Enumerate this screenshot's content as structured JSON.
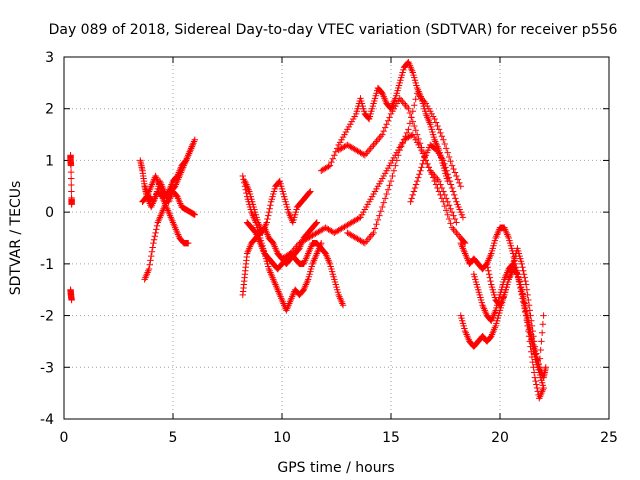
{
  "chart_data": {
    "type": "scatter",
    "title": "Day 089 of 2018, Sidereal Day-to-day VTEC variation (SDTVAR) for receiver p556",
    "xlabel": "GPS time / hours",
    "ylabel": "SDTVAR / TECUs",
    "xlim": [
      0,
      25
    ],
    "ylim": [
      -4,
      3
    ],
    "xticks": [
      "0",
      "5",
      "10",
      "15",
      "20",
      "25"
    ],
    "yticks": [
      "-4",
      "-3",
      "-2",
      "-1",
      "0",
      "1",
      "2",
      "3"
    ],
    "grid": true,
    "marker": "+",
    "color": "#ff0000",
    "series": [
      {
        "name": "s1",
        "x": [
          0.3,
          0.3,
          0.32,
          0.35,
          0.35
        ],
        "y": [
          1.1,
          1.0,
          0.9,
          0.15,
          0.25
        ]
      },
      {
        "name": "s2",
        "x": [
          0.3,
          0.32,
          0.35
        ],
        "y": [
          -1.5,
          -1.6,
          -1.7
        ]
      },
      {
        "name": "s3",
        "x": [
          3.5,
          3.6,
          3.7,
          3.8,
          4.0,
          4.2,
          4.4,
          4.6,
          4.8,
          5.0,
          5.2,
          5.4,
          5.6,
          5.8,
          6.0
        ],
        "y": [
          1.0,
          0.8,
          0.5,
          0.3,
          0.1,
          0.3,
          0.6,
          0.4,
          0.2,
          0.4,
          0.3,
          0.1,
          0.05,
          0.0,
          -0.05
        ]
      },
      {
        "name": "s4",
        "x": [
          3.6,
          3.8,
          4.0,
          4.2,
          4.4,
          4.6,
          4.8,
          5.0,
          5.2,
          5.4,
          5.6,
          5.8,
          6.0
        ],
        "y": [
          0.2,
          0.3,
          0.5,
          0.7,
          0.5,
          0.3,
          0.4,
          0.6,
          0.7,
          0.9,
          1.0,
          1.2,
          1.4
        ]
      },
      {
        "name": "s5",
        "x": [
          3.7,
          3.9,
          4.1,
          4.3,
          4.5,
          4.7,
          4.9,
          5.1,
          5.3,
          5.5,
          5.7,
          5.9
        ],
        "y": [
          -1.3,
          -1.1,
          -0.6,
          -0.2,
          0.0,
          0.2,
          0.4,
          0.5,
          0.7,
          0.9,
          1.1,
          1.3
        ]
      },
      {
        "name": "s6",
        "x": [
          3.7,
          3.9,
          4.1,
          4.3,
          4.5,
          4.7,
          4.9,
          5.1,
          5.3,
          5.5,
          5.7
        ],
        "y": [
          0.5,
          0.3,
          0.2,
          0.4,
          0.3,
          0.1,
          -0.1,
          -0.3,
          -0.5,
          -0.6,
          -0.6
        ]
      },
      {
        "name": "s7",
        "x": [
          8.2,
          8.3,
          8.4,
          8.6,
          8.8,
          9.0,
          9.2,
          9.4,
          9.6,
          9.8,
          10.0,
          10.2,
          10.4,
          10.6,
          10.8,
          11.0,
          11.2,
          11.4,
          11.6
        ],
        "y": [
          -1.6,
          -1.2,
          -0.8,
          -0.6,
          -0.5,
          -0.4,
          -0.3,
          -0.5,
          -0.6,
          -0.8,
          -0.9,
          -1.0,
          -0.9,
          -0.8,
          -0.7,
          -0.5,
          -0.4,
          -0.3,
          -0.2
        ]
      },
      {
        "name": "s8",
        "x": [
          8.2,
          8.4,
          8.6,
          8.8,
          9.0,
          9.2,
          9.4,
          9.6,
          9.8,
          10.0,
          10.2,
          10.4,
          10.6,
          10.8,
          11.0,
          11.2,
          11.4,
          11.6,
          11.8
        ],
        "y": [
          0.7,
          0.3,
          0.0,
          -0.2,
          -0.5,
          -0.8,
          -1.1,
          -1.3,
          -1.5,
          -1.7,
          -1.9,
          -1.7,
          -1.5,
          -1.6,
          -1.5,
          -1.3,
          -1.0,
          -0.8,
          -0.6
        ]
      },
      {
        "name": "s9",
        "x": [
          8.3,
          8.5,
          8.7,
          8.9,
          9.1,
          9.3,
          9.5,
          9.7,
          9.9,
          10.1,
          10.3,
          10.5,
          10.7,
          10.9,
          11.1,
          11.3
        ],
        "y": [
          0.6,
          0.4,
          0.1,
          -0.2,
          -0.4,
          -0.2,
          0.2,
          0.5,
          0.6,
          0.3,
          0.0,
          -0.2,
          0.1,
          0.2,
          0.3,
          0.4
        ]
      },
      {
        "name": "s10",
        "x": [
          8.4,
          8.6,
          8.8,
          9.0,
          9.2,
          9.4,
          9.6,
          9.8,
          10.0,
          10.2,
          10.4,
          10.6,
          10.8,
          11.0,
          11.2,
          11.4,
          11.6,
          11.8,
          12.0,
          12.2,
          12.4,
          12.6,
          12.8
        ],
        "y": [
          -0.2,
          -0.3,
          -0.4,
          -0.6,
          -0.8,
          -0.9,
          -1.0,
          -1.1,
          -1.0,
          -0.9,
          -0.8,
          -0.9,
          -1.0,
          -1.0,
          -0.8,
          -0.6,
          -0.6,
          -0.7,
          -0.8,
          -1.0,
          -1.3,
          -1.6,
          -1.8
        ]
      },
      {
        "name": "s11",
        "x": [
          10.0,
          10.4,
          10.8,
          11.2,
          11.6,
          12.0,
          12.4,
          12.8,
          13.2,
          13.6,
          14.0,
          14.4,
          14.8,
          15.2,
          15.6,
          16.0,
          16.4,
          16.8,
          17.2,
          17.6,
          18.0
        ],
        "y": [
          -0.9,
          -0.8,
          -0.6,
          -0.5,
          -0.4,
          -0.3,
          -0.4,
          -0.3,
          -0.2,
          -0.1,
          0.2,
          0.5,
          0.8,
          1.1,
          1.4,
          1.5,
          1.2,
          0.8,
          0.6,
          0.2,
          -0.2
        ]
      },
      {
        "name": "s12",
        "x": [
          11.8,
          12.2,
          12.6,
          13.0,
          13.4,
          13.6,
          13.8,
          14.0,
          14.2,
          14.4,
          14.6,
          14.8,
          15.0,
          15.2,
          15.4,
          15.6,
          15.8,
          16.0,
          16.2,
          16.4,
          16.6,
          16.8,
          17.0,
          17.2,
          17.4,
          17.6
        ],
        "y": [
          0.8,
          0.9,
          1.3,
          1.6,
          1.9,
          2.2,
          1.9,
          1.8,
          2.1,
          2.4,
          2.3,
          2.1,
          2.0,
          2.2,
          2.5,
          2.8,
          2.9,
          2.7,
          2.4,
          2.2,
          1.9,
          1.7,
          1.4,
          1.2,
          0.9,
          0.6
        ]
      },
      {
        "name": "s13",
        "x": [
          12.6,
          13.0,
          13.4,
          13.8,
          14.2,
          14.6,
          15.0,
          15.4,
          15.8,
          16.2,
          16.6,
          17.0,
          17.4,
          17.8,
          18.2,
          18.4
        ],
        "y": [
          1.2,
          1.3,
          1.2,
          1.1,
          1.3,
          1.5,
          1.9,
          2.2,
          2.0,
          1.5,
          1.0,
          0.6,
          0.2,
          -0.3,
          -0.5,
          -0.6
        ]
      },
      {
        "name": "s14",
        "x": [
          13.0,
          13.4,
          13.8,
          14.2,
          14.6,
          15.0,
          15.4,
          15.8,
          16.2,
          16.6,
          17.0,
          17.4,
          17.8,
          18.2
        ],
        "y": [
          -0.4,
          -0.5,
          -0.6,
          -0.4,
          0.1,
          0.6,
          1.2,
          1.6,
          2.3,
          2.1,
          1.8,
          1.4,
          0.9,
          0.5
        ]
      },
      {
        "name": "s15",
        "x": [
          15.9,
          16.2,
          16.5,
          16.8,
          17.1,
          17.4,
          17.7,
          18.0,
          18.3
        ],
        "y": [
          0.2,
          0.6,
          1.0,
          1.3,
          1.2,
          1.0,
          0.6,
          0.2,
          -0.1
        ]
      },
      {
        "name": "s16",
        "x": [
          18.2,
          18.4,
          18.6,
          18.8,
          19.0,
          19.2,
          19.4,
          19.6,
          19.8,
          20.0,
          20.2,
          20.4,
          20.6,
          20.8,
          21.0,
          21.2,
          21.4,
          21.6,
          21.8,
          22.0
        ],
        "y": [
          -0.6,
          -0.8,
          -1.0,
          -0.9,
          -1.0,
          -1.1,
          -1.0,
          -0.8,
          -0.5,
          -0.3,
          -0.3,
          -0.5,
          -0.8,
          -1.2,
          -1.6,
          -2.0,
          -2.4,
          -2.8,
          -3.1,
          -3.4
        ]
      },
      {
        "name": "s17",
        "x": [
          18.2,
          18.4,
          18.6,
          18.8,
          19.0,
          19.2,
          19.4,
          19.6,
          19.8,
          20.0,
          20.2,
          20.4,
          20.6,
          20.8,
          21.0,
          21.2,
          21.4,
          21.6,
          21.8,
          22.0,
          22.1
        ],
        "y": [
          -2.0,
          -2.3,
          -2.5,
          -2.6,
          -2.5,
          -2.4,
          -2.5,
          -2.4,
          -2.2,
          -1.9,
          -1.6,
          -1.3,
          -1.1,
          -1.2,
          -1.5,
          -1.9,
          -2.3,
          -2.7,
          -3.0,
          -3.2,
          -3.0
        ]
      },
      {
        "name": "s18",
        "x": [
          18.8,
          19.0,
          19.2,
          19.4,
          19.6,
          19.8,
          20.0,
          20.2,
          20.4,
          20.6,
          20.8,
          21.0,
          21.2,
          21.4,
          21.6,
          21.8,
          22.0
        ],
        "y": [
          -1.2,
          -1.5,
          -1.8,
          -2.0,
          -2.1,
          -1.9,
          -1.6,
          -1.3,
          -1.1,
          -1.0,
          -1.2,
          -1.5,
          -2.0,
          -2.6,
          -3.2,
          -3.6,
          -3.4
        ]
      },
      {
        "name": "s19",
        "x": [
          19.4,
          19.6,
          19.8,
          20.0,
          20.2,
          20.4,
          20.6,
          20.8,
          21.0,
          21.2,
          21.4,
          21.6,
          21.8,
          22.0
        ],
        "y": [
          -1.0,
          -1.4,
          -1.7,
          -1.8,
          -1.6,
          -1.3,
          -1.0,
          -0.7,
          -1.0,
          -1.4,
          -2.0,
          -2.6,
          -3.0,
          -2.0
        ]
      }
    ]
  }
}
